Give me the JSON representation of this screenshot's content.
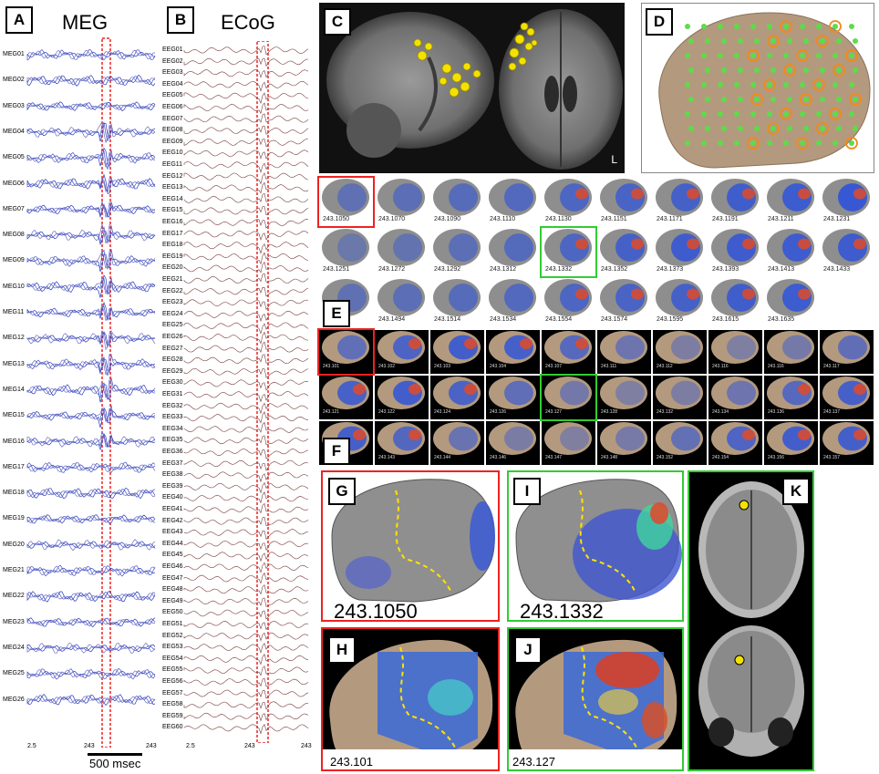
{
  "panels": {
    "A": {
      "label": "A",
      "title": "MEG"
    },
    "B": {
      "label": "B",
      "title": "ECoG"
    },
    "C": {
      "label": "C",
      "side": "L"
    },
    "D": {
      "label": "D"
    },
    "E": {
      "label": "E"
    },
    "F": {
      "label": "F"
    },
    "G": {
      "label": "G",
      "time": "243.1050"
    },
    "H": {
      "label": "H",
      "time": "243.101"
    },
    "I": {
      "label": "I",
      "time": "243.1332"
    },
    "J": {
      "label": "J",
      "time": "243.127"
    },
    "K": {
      "label": "K"
    }
  },
  "meg_channels": [
    "MEG01",
    "MEG02",
    "MEG03",
    "MEG04",
    "MEG05",
    "MEG06",
    "MEG07",
    "MEG08",
    "MEG09",
    "MEG10",
    "MEG11",
    "MEG12",
    "MEG13",
    "MEG14",
    "MEG15",
    "MEG16",
    "MEG17",
    "MEG18",
    "MEG19",
    "MEG20",
    "MEG21",
    "MEG22",
    "MEG23",
    "MEG24",
    "MEG25",
    "MEG26"
  ],
  "meg_axis": {
    "ticks": [
      "2.5",
      "243",
      "243"
    ],
    "scale_label": "500 msec"
  },
  "ecog_axis": {
    "ticks": [
      "2.5",
      "243",
      "243"
    ]
  },
  "meg_row_times": [
    [
      "243.1050",
      "243.1070",
      "243.1090",
      "243.1110",
      "243.1130",
      "243.1151",
      "243.1171",
      "243.1191",
      "243.1211",
      "243.1231"
    ],
    [
      "243.1251",
      "243.1272",
      "243.1292",
      "243.1312",
      "243.1332",
      "243.1352",
      "243.1373",
      "243.1393",
      "243.1413",
      "243.1433"
    ],
    [
      "243.1473",
      "243.1494",
      "243.1514",
      "243.1534",
      "243.1554",
      "243.1574",
      "243.1595",
      "243.1615",
      "243.1635"
    ]
  ],
  "ecog_row_times": [
    [
      "243.101",
      "243.102",
      "243.103",
      "243.104",
      "243.107",
      "243.111",
      "243.112",
      "243.116",
      "243.116",
      "243.117"
    ],
    [
      "243.121",
      "243.122",
      "243.124",
      "243.126",
      "243.127",
      "243.128",
      "243.132",
      "243.134",
      "243.136",
      "243.137"
    ],
    [
      "243.142",
      "243.143",
      "243.144",
      "243.146",
      "243.147",
      "243.148",
      "243.152",
      "243.154",
      "243.156",
      "243.157"
    ]
  ]
}
